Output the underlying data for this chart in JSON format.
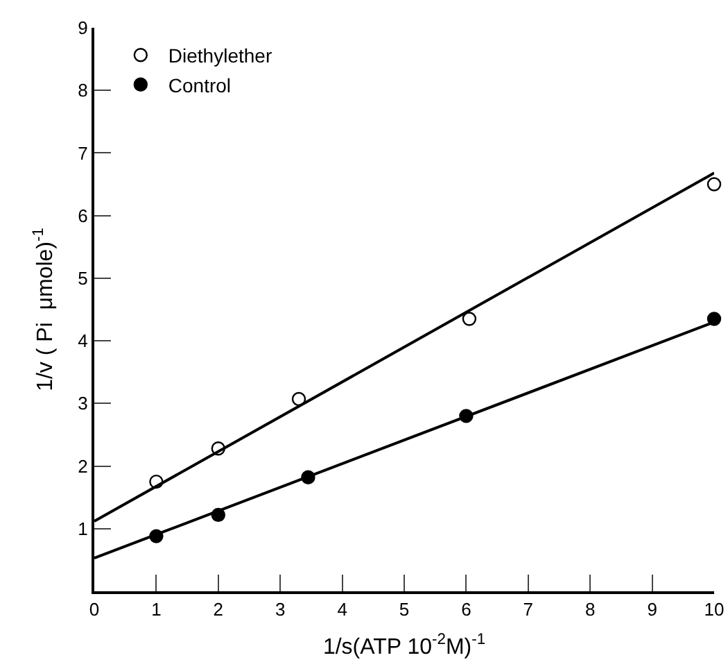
{
  "chart_data": {
    "type": "scatter",
    "xlabel": "1/s(ATP 10$^{-2}$M)$^{-1}$",
    "ylabel": "1/v ( Pi  μmole)$^{-1}$",
    "xlim": [
      0,
      10
    ],
    "xticks": [
      0,
      1,
      2,
      3,
      4,
      5,
      6,
      7,
      8,
      9,
      10
    ],
    "ylim": [
      0,
      9
    ],
    "yticks": [
      1,
      2,
      3,
      4,
      5,
      6,
      7,
      8,
      9
    ],
    "grid": false,
    "legend": "top left",
    "marker": "circle",
    "series": [
      {
        "name": "Diethylether",
        "color": "#ffffff",
        "x": [
          1,
          2,
          3.3,
          6.05,
          10
        ],
        "values": [
          1.75,
          2.28,
          3.07,
          4.35,
          6.5
        ]
      },
      {
        "name": "Control",
        "color": "#000000",
        "x": [
          1,
          2,
          3.45,
          6,
          10
        ],
        "values": [
          0.88,
          1.22,
          1.82,
          2.8,
          4.35
        ]
      },
      {
        "type": "line",
        "color": "#000000",
        "marker": "none",
        "x": [
          0,
          10
        ],
        "values": [
          1.12,
          6.68
        ]
      },
      {
        "type": "line",
        "color": "#000000",
        "marker": "none",
        "x": [
          0,
          10
        ],
        "values": [
          0.53,
          4.3
        ]
      }
    ]
  }
}
